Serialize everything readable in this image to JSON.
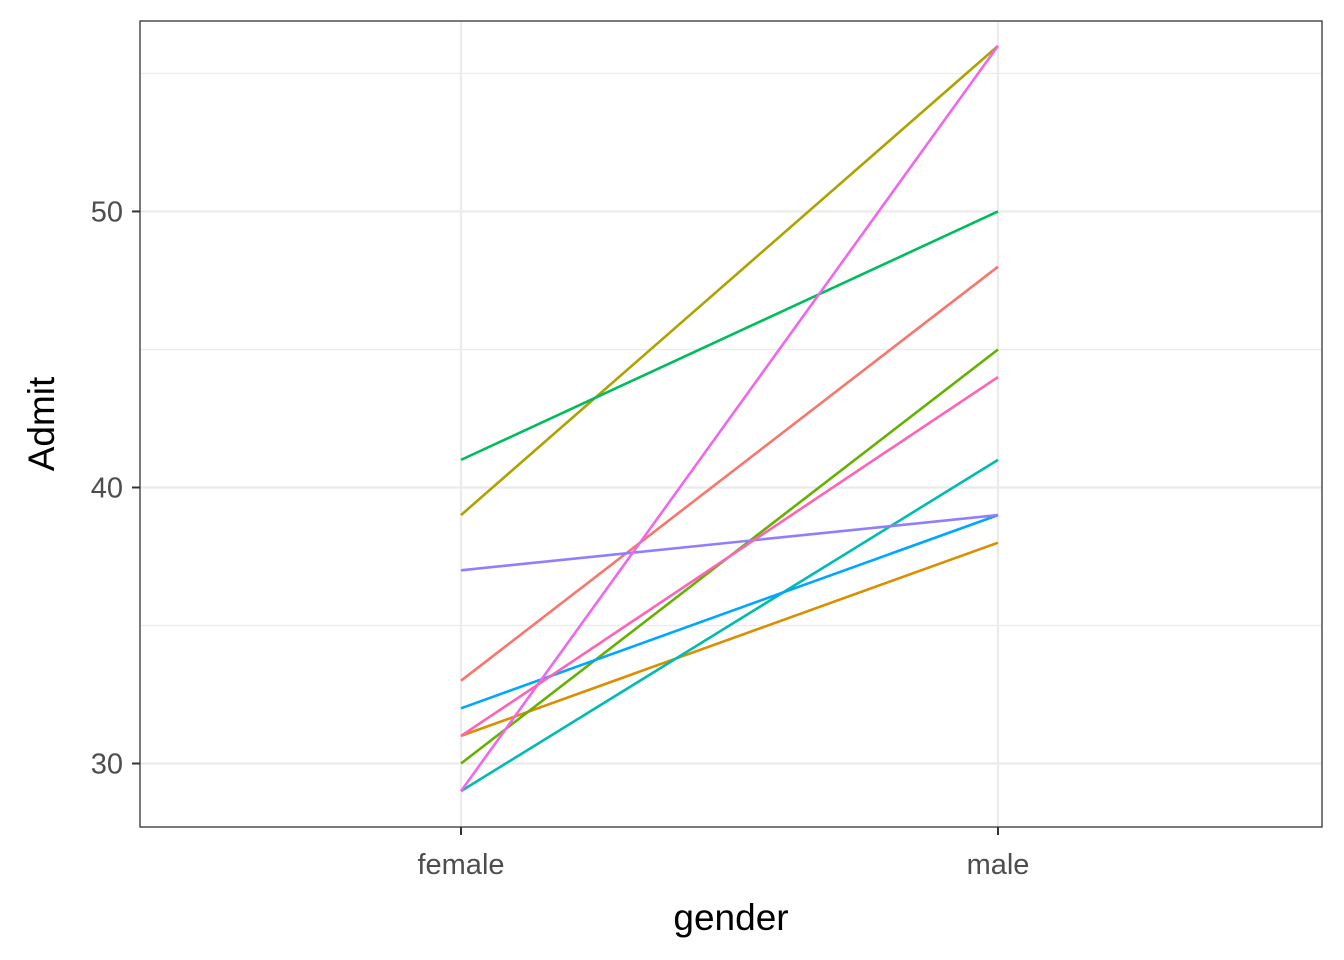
{
  "chart_data": {
    "type": "line",
    "title": "",
    "xlabel": "gender",
    "ylabel": "Admit",
    "categories": [
      "female",
      "male"
    ],
    "ylim": [
      27.7,
      56.9
    ],
    "y_ticks": [
      30,
      40,
      50
    ],
    "y_minor_ticks": [
      35,
      45,
      55
    ],
    "grid": true,
    "legend": "none",
    "series": [
      {
        "color": "#F8766D",
        "values": [
          33,
          48
        ]
      },
      {
        "color": "#DB8E00",
        "values": [
          31,
          38
        ]
      },
      {
        "color": "#AEA200",
        "values": [
          39,
          56
        ]
      },
      {
        "color": "#64B200",
        "values": [
          30,
          45
        ]
      },
      {
        "color": "#00BD5C",
        "values": [
          41,
          50
        ]
      },
      {
        "color": "#00BBB2",
        "values": [
          29,
          41
        ]
      },
      {
        "color": "#00A6FF",
        "values": [
          32,
          39
        ]
      },
      {
        "color": "#8F7FFF",
        "values": [
          37,
          39
        ]
      },
      {
        "color": "#EF67EB",
        "values": [
          29,
          56
        ]
      },
      {
        "color": "#FF63B6",
        "values": [
          31,
          44
        ]
      }
    ]
  }
}
